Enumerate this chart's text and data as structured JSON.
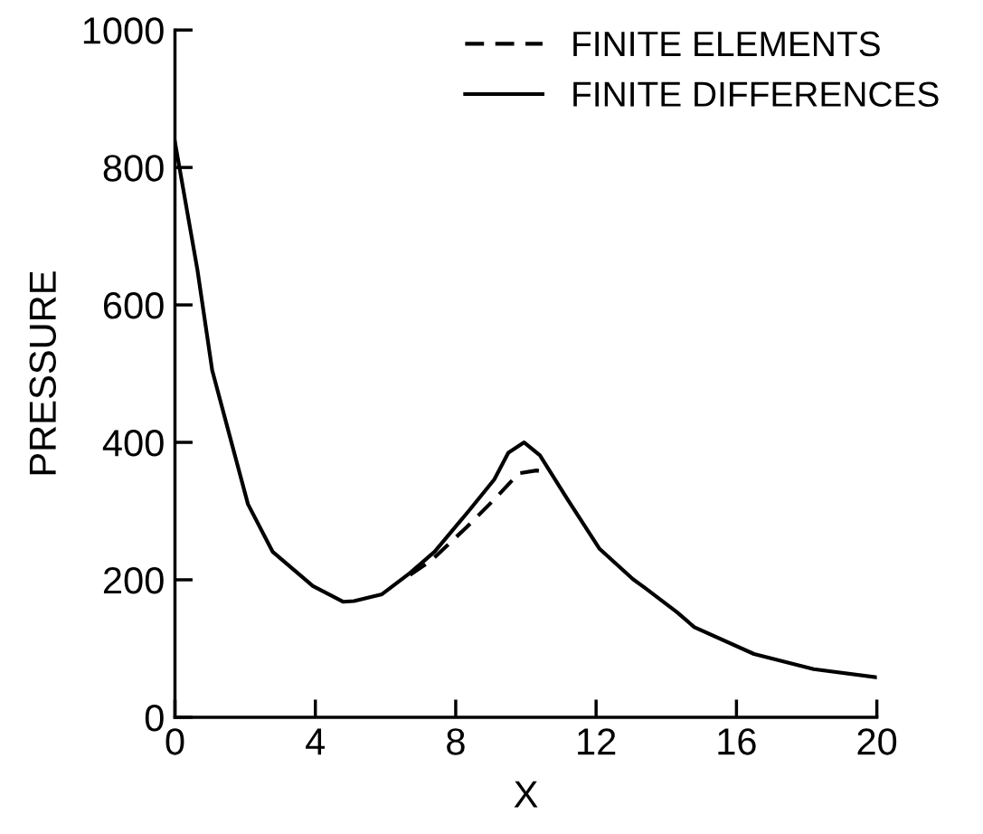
{
  "chart_data": {
    "type": "line",
    "xlabel": "X",
    "ylabel": "PRESSURE",
    "xlim": [
      0,
      20
    ],
    "xticks": [
      0,
      4,
      8,
      12,
      16,
      20
    ],
    "ylim": [
      0,
      1000
    ],
    "yticks": [
      0,
      200,
      400,
      600,
      800,
      1000
    ],
    "grid": false,
    "legend": "top right",
    "marker": "none",
    "series": [
      {
        "name": "FINITE ELEMENTS",
        "color": "#000000",
        "line_style": "dashed",
        "x": [
          6.7,
          7.3,
          8.3,
          9.1,
          9.8,
          10.3,
          10.55
        ],
        "values": [
          207,
          228,
          276,
          317,
          355,
          359,
          357
        ]
      },
      {
        "name": "FINITE DIFFERENCES",
        "color": "#000000",
        "line_style": "solid",
        "x": [
          0,
          0.64,
          1.06,
          1.52,
          2.08,
          2.78,
          3.93,
          4.8,
          5.1,
          5.9,
          6.7,
          7.4,
          8.4,
          9.1,
          9.5,
          9.95,
          10.4,
          11.2,
          12.1,
          13.05,
          13.4,
          14.3,
          14.8,
          16.5,
          18.2,
          20
        ],
        "values": [
          837,
          651,
          505,
          417,
          310,
          241,
          191,
          168,
          169,
          179,
          210,
          241,
          302,
          346,
          385,
          400,
          381,
          316,
          245,
          201,
          188,
          153,
          131,
          92,
          70,
          58
        ]
      }
    ]
  }
}
